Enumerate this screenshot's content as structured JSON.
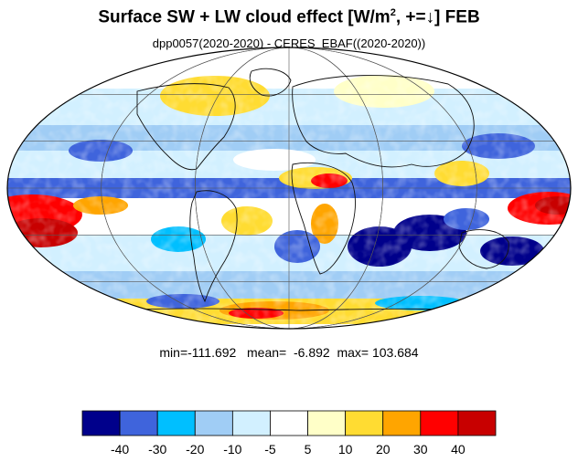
{
  "title": {
    "main": "Surface SW + LW cloud effect [W/m",
    "sup": "2",
    "rest": ", +=↓]  FEB"
  },
  "subtitle": "dpp0057(2020-2020) - CERES_EBAF((2020-2020))",
  "stats": {
    "min_label": "min=",
    "min": "-111.692",
    "mean_label": "mean=",
    "mean": "-6.892",
    "max_label": "max=",
    "max": "103.684"
  },
  "colorbar": {
    "colors": [
      "#00008b",
      "#3f64dc",
      "#00bfff",
      "#a0cdf5",
      "#d2f0ff",
      "#ffffff",
      "#ffffc8",
      "#ffdc32",
      "#ffa500",
      "#ff0000",
      "#c80000"
    ],
    "labels": [
      "-40",
      "-30",
      "-20",
      "-10",
      "-5",
      "5",
      "10",
      "20",
      "30",
      "40"
    ]
  }
}
